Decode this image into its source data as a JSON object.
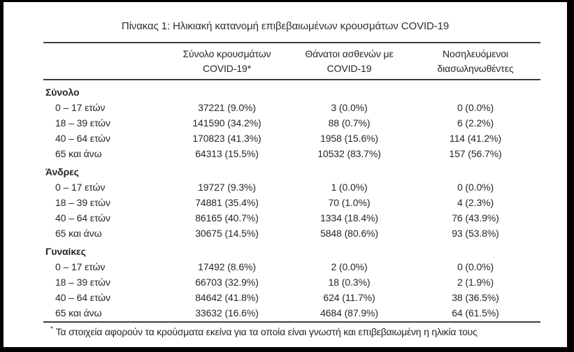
{
  "page": {
    "title": "Πίνακας 1: Ηλικιακή κατανομή επιβεβαιωμένων κρουσμάτων COVID-19"
  },
  "colors": {
    "frame": "#000000",
    "page_background": "#ffffff",
    "rule": "#3d3d3d",
    "text": "#262626"
  },
  "table": {
    "columns": [
      {
        "line1": "Σύνολο κρουσμάτων",
        "line2": "COVID-19*"
      },
      {
        "line1": "Θάνατοι ασθενών με",
        "line2": "COVID-19"
      },
      {
        "line1": "Νοσηλευόμενοι",
        "line2": "διασωληνωθέντες"
      }
    ],
    "sections": [
      {
        "label": "Σύνολο",
        "rows": [
          {
            "label": "0 – 17 ετών",
            "cases": "37221 (9.0%)",
            "deaths": "3 (0.0%)",
            "intubated": "0 (0.0%)"
          },
          {
            "label": "18 – 39 ετών",
            "cases": "141590 (34.2%)",
            "deaths": "88 (0.7%)",
            "intubated": "6 (2.2%)"
          },
          {
            "label": "40 – 64 ετών",
            "cases": "170823 (41.3%)",
            "deaths": "1958 (15.6%)",
            "intubated": "114 (41.2%)"
          },
          {
            "label": "65 και άνω",
            "cases": "64313 (15.5%)",
            "deaths": "10532 (83.7%)",
            "intubated": "157 (56.7%)"
          }
        ]
      },
      {
        "label": "Άνδρες",
        "rows": [
          {
            "label": "0 – 17 ετών",
            "cases": "19727 (9.3%)",
            "deaths": "1 (0.0%)",
            "intubated": "0 (0.0%)"
          },
          {
            "label": "18 – 39 ετών",
            "cases": "74881 (35.4%)",
            "deaths": "70 (1.0%)",
            "intubated": "4 (2.3%)"
          },
          {
            "label": "40 – 64 ετών",
            "cases": "86165 (40.7%)",
            "deaths": "1334 (18.4%)",
            "intubated": "76 (43.9%)"
          },
          {
            "label": "65 και άνω",
            "cases": "30675 (14.5%)",
            "deaths": "5848 (80.6%)",
            "intubated": "93 (53.8%)"
          }
        ]
      },
      {
        "label": "Γυναίκες",
        "rows": [
          {
            "label": "0 – 17 ετών",
            "cases": "17492 (8.6%)",
            "deaths": "2 (0.0%)",
            "intubated": "0 (0.0%)"
          },
          {
            "label": "18 – 39 ετών",
            "cases": "66703 (32.9%)",
            "deaths": "18 (0.3%)",
            "intubated": "2 (1.9%)"
          },
          {
            "label": "40 – 64 ετών",
            "cases": "84642 (41.8%)",
            "deaths": "624 (11.7%)",
            "intubated": "38 (36.5%)"
          },
          {
            "label": "65 και άνω",
            "cases": "33632 (16.6%)",
            "deaths": "4684 (87.9%)",
            "intubated": "64 (61.5%)"
          }
        ]
      }
    ],
    "footnote": {
      "marker": "*",
      "text": "Τα στοιχεία αφορούν τα κρούσματα εκείνα για τα οποία είναι γνωστή και επιβεβαιωμένη η ηλικία τους"
    }
  }
}
